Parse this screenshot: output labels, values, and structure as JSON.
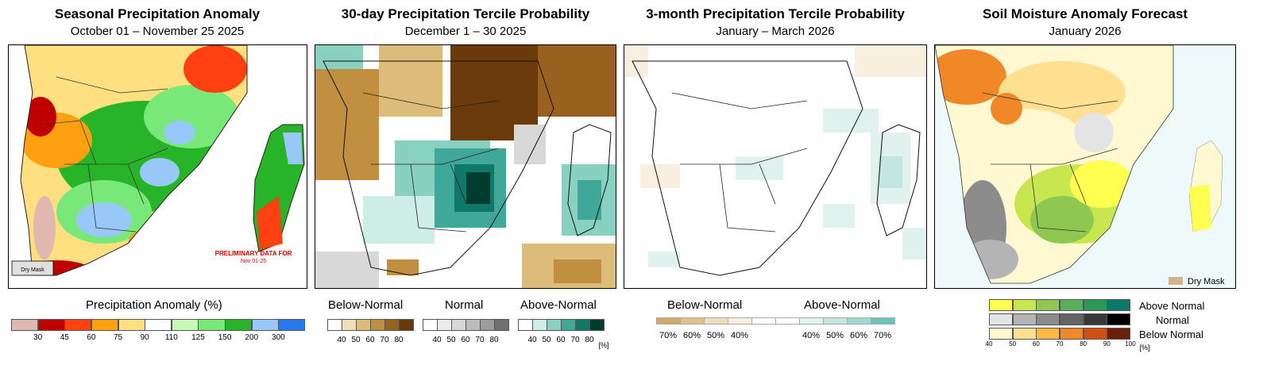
{
  "panels": [
    {
      "title": "Seasonal Precipitation Anomaly",
      "subtitle": "October 01 – November 25 2025"
    },
    {
      "title": "30-day Precipitation Tercile Probability",
      "subtitle": "December 1 – 30 2025"
    },
    {
      "title": "3-month Precipitation Tercile Probability",
      "subtitle": "January – March 2026"
    },
    {
      "title": "Soil Moisture Anomaly Forecast",
      "subtitle": "January 2026"
    }
  ],
  "panel1": {
    "dry_mask_label": "Dry Mask",
    "preliminary_line1": "PRELIMINARY DATA FOR",
    "preliminary_line2": "Nov 01-25",
    "legend_title": "Precipitation Anomaly (%)",
    "colors": [
      "#e0b8b0",
      "#c00000",
      "#ff4010",
      "#ffa010",
      "#ffe080",
      "#ffffff",
      "#c8f8b8",
      "#78e878",
      "#28b428",
      "#98c8f8",
      "#2878f0"
    ],
    "ticks": [
      "30",
      "45",
      "60",
      "75",
      "90",
      "110",
      "125",
      "150",
      "200",
      "300"
    ]
  },
  "panel2": {
    "labels": [
      "Below-Normal",
      "Normal",
      "Above-Normal"
    ],
    "below_colors": [
      "#ffffff",
      "#f0e0b8",
      "#dcbc78",
      "#c09040",
      "#9a6020",
      "#6a3a0a"
    ],
    "normal_colors": [
      "#ffffff",
      "#ececec",
      "#d8d8d8",
      "#bcbcbc",
      "#9c9c9c",
      "#707070"
    ],
    "above_colors": [
      "#ffffff",
      "#cceee6",
      "#88d0c0",
      "#40a898",
      "#107868",
      "#003c30"
    ],
    "ticks": [
      "40",
      "50",
      "60",
      "70",
      "80"
    ],
    "unit": "[%]"
  },
  "panel3": {
    "labels": [
      "Below-Normal",
      "Above-Normal"
    ],
    "colors": [
      "#d2a868",
      "#e2c08c",
      "#f0ddb8",
      "#f8efde",
      "#ffffff",
      "#ffffff",
      "#e0f2ee",
      "#c2e6e0",
      "#9cdad0",
      "#6cc4b8"
    ],
    "ticks": [
      "70%",
      "60%",
      "50%",
      "40%",
      "40%",
      "50%",
      "60%",
      "70%"
    ]
  },
  "panel4": {
    "dry_mask_label": "Dry Mask",
    "labels": [
      "Above Normal",
      "Normal",
      "Below Normal"
    ],
    "above_colors": [
      "#ffff50",
      "#c8e650",
      "#8ec850",
      "#58b058",
      "#2a9858",
      "#0a7a6a"
    ],
    "normal_colors": [
      "#e4e4e4",
      "#b4b4b4",
      "#8c8c8c",
      "#646464",
      "#383838",
      "#000000"
    ],
    "below_colors": [
      "#fff8d0",
      "#ffe090",
      "#ffb840",
      "#f08828",
      "#d05010",
      "#6a2008"
    ],
    "ticks": [
      "40",
      "50",
      "60",
      "70",
      "80",
      "90",
      "100"
    ],
    "unit": "[%]"
  }
}
